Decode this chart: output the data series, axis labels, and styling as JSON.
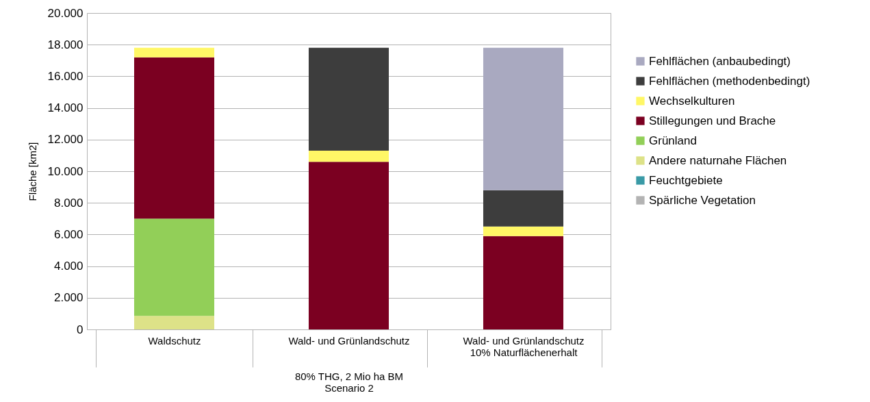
{
  "chart_data": {
    "type": "bar",
    "stacked": true,
    "ylabel": "Fläche [km2]",
    "xlabel": "80% THG, 2 Mio ha BM\nScenario 2",
    "categories": [
      "Waldschutz",
      "Wald- und Grünlandschutz",
      "Wald- und Grünlandschutz\n10% Naturflächenerhalt"
    ],
    "series": [
      {
        "name": "Spärliche Vegetation",
        "color": "#b3b3b3",
        "values": [
          0,
          0,
          0
        ]
      },
      {
        "name": "Feuchtgebiete",
        "color": "#3a9aa6",
        "values": [
          0,
          0,
          0
        ]
      },
      {
        "name": "Andere naturnahe Flächen",
        "color": "#dde288",
        "values": [
          850,
          0,
          0
        ]
      },
      {
        "name": "Grünland",
        "color": "#92cf58",
        "values": [
          6150,
          0,
          0
        ]
      },
      {
        "name": "Stillegungen und Brache",
        "color": "#7b0021",
        "values": [
          10200,
          10600,
          5900
        ]
      },
      {
        "name": "Wechselkulturen",
        "color": "#fff766",
        "values": [
          600,
          700,
          600
        ]
      },
      {
        "name": "Fehlflächen (methodenbedingt)",
        "color": "#3d3d3d",
        "values": [
          0,
          6500,
          2300
        ]
      },
      {
        "name": "Fehlflächen (anbaubedingt)",
        "color": "#a9a9c0",
        "values": [
          0,
          0,
          9000
        ]
      }
    ],
    "ylim": [
      0,
      20000
    ],
    "yticks": [
      {
        "value": 0,
        "label": "0"
      },
      {
        "value": 2000,
        "label": "2.000"
      },
      {
        "value": 4000,
        "label": "4.000"
      },
      {
        "value": 6000,
        "label": "6.000"
      },
      {
        "value": 8000,
        "label": "8.000"
      },
      {
        "value": 10000,
        "label": "10.000"
      },
      {
        "value": 12000,
        "label": "12.000"
      },
      {
        "value": 14000,
        "label": "14.000"
      },
      {
        "value": 16000,
        "label": "16.000"
      },
      {
        "value": 18000,
        "label": "18.000"
      },
      {
        "value": 20000,
        "label": "20.000"
      }
    ],
    "grid": "y",
    "legend": "right"
  }
}
